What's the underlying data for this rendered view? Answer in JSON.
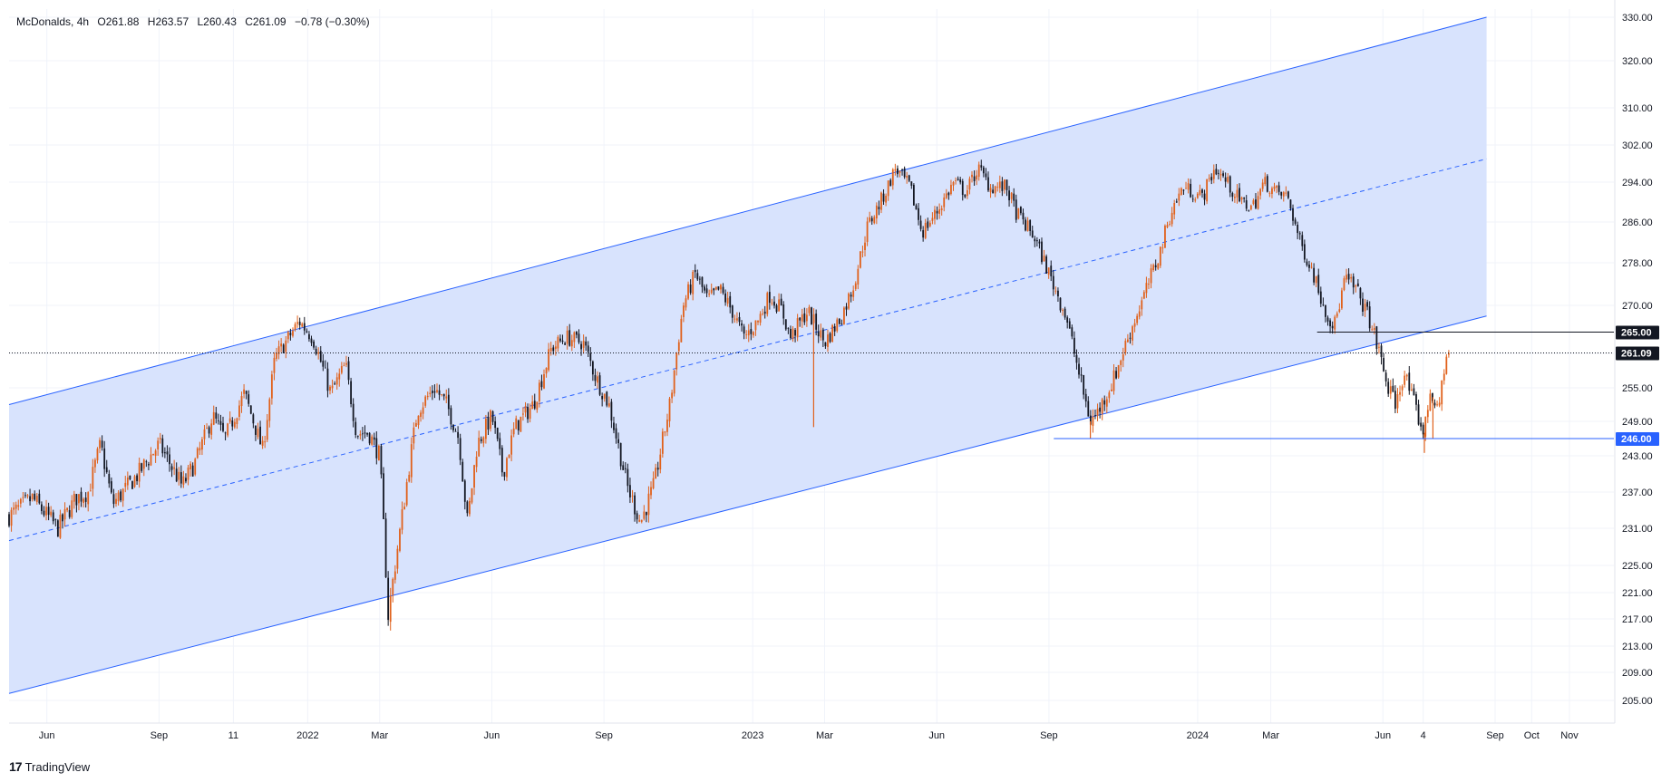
{
  "legend": {
    "symbol": "McDonalds, 4h",
    "open": "O261.88",
    "high": "H263.57",
    "low": "L260.43",
    "close": "C261.09",
    "change": "−0.78 (−0.30%)"
  },
  "brand": "TradingView",
  "colors": {
    "up": "#e0611b",
    "down": "#131722",
    "channel_line": "#2962ff",
    "channel_fill": "#d6e2fd",
    "resistance_line": "#131722",
    "support_line": "#2962ff",
    "price_badge": "#131722",
    "support_badge": "#2962ff"
  },
  "chart_data": {
    "type": "candlestick",
    "symbol": "McDonalds",
    "interval": "4h",
    "y_axis_ticks": [
      205,
      209,
      213,
      217,
      221,
      225,
      231,
      237,
      243,
      249,
      255,
      261,
      270,
      278,
      286,
      294,
      302,
      310,
      320,
      330
    ],
    "y_tick_labels": [
      "205.00",
      "209.00",
      "213.00",
      "217.00",
      "221.00",
      "225.00",
      "231.00",
      "237.00",
      "243.00",
      "249.00",
      "255.00",
      "261.09",
      "270.00",
      "278.00",
      "286.00",
      "294.00",
      "302.00",
      "310.00",
      "320.00",
      "330.00"
    ],
    "x_tick_labels": [
      "Jun",
      "Sep",
      "11",
      "2022",
      "Mar",
      "Jun",
      "Sep",
      "2023",
      "Mar",
      "Jun",
      "Sep",
      "2024",
      "Mar",
      "Jun",
      "4",
      "Sep",
      "Oct",
      "Nov"
    ],
    "x_tick_dates": [
      "2021-06-01",
      "2021-09-01",
      "2021-11-01",
      "2022-01-01",
      "2022-03-01",
      "2022-06-01",
      "2022-09-01",
      "2023-01-01",
      "2023-03-01",
      "2023-06-01",
      "2023-09-01",
      "2024-01-01",
      "2024-03-01",
      "2024-06-01",
      "2024-07-04",
      "2024-09-01",
      "2024-10-01",
      "2024-11-01"
    ],
    "price_path": [
      [
        "2021-05-01",
        233
      ],
      [
        "2021-05-20",
        236
      ],
      [
        "2021-06-10",
        231
      ],
      [
        "2021-06-25",
        236
      ],
      [
        "2021-07-05",
        237
      ],
      [
        "2021-07-15",
        245
      ],
      [
        "2021-07-25",
        235
      ],
      [
        "2021-08-15",
        240
      ],
      [
        "2021-09-01",
        245
      ],
      [
        "2021-09-20",
        238
      ],
      [
        "2021-10-01",
        242
      ],
      [
        "2021-10-15",
        250
      ],
      [
        "2021-10-25",
        246
      ],
      [
        "2021-11-10",
        254
      ],
      [
        "2021-11-25",
        244
      ],
      [
        "2021-12-05",
        260
      ],
      [
        "2021-12-25",
        267
      ],
      [
        "2022-01-05",
        264
      ],
      [
        "2022-01-20",
        254
      ],
      [
        "2022-02-01",
        259
      ],
      [
        "2022-02-10",
        247
      ],
      [
        "2022-02-20",
        247
      ],
      [
        "2022-03-01",
        243
      ],
      [
        "2022-03-08",
        217.5
      ],
      [
        "2022-03-18",
        231
      ],
      [
        "2022-04-01",
        251
      ],
      [
        "2022-04-15",
        255
      ],
      [
        "2022-04-25",
        252
      ],
      [
        "2022-05-05",
        246
      ],
      [
        "2022-05-12",
        232
      ],
      [
        "2022-05-20",
        245
      ],
      [
        "2022-06-01",
        250
      ],
      [
        "2022-06-10",
        240
      ],
      [
        "2022-06-20",
        248
      ],
      [
        "2022-07-05",
        252
      ],
      [
        "2022-07-20",
        262
      ],
      [
        "2022-08-01",
        264
      ],
      [
        "2022-08-15",
        263
      ],
      [
        "2022-08-25",
        257
      ],
      [
        "2022-09-05",
        252
      ],
      [
        "2022-09-20",
        238
      ],
      [
        "2022-10-01",
        232
      ],
      [
        "2022-10-12",
        238
      ],
      [
        "2022-10-25",
        252
      ],
      [
        "2022-11-05",
        270
      ],
      [
        "2022-11-15",
        276
      ],
      [
        "2022-11-25",
        271
      ],
      [
        "2022-12-05",
        273
      ],
      [
        "2022-12-15",
        269
      ],
      [
        "2022-12-25",
        264
      ],
      [
        "2023-01-05",
        267
      ],
      [
        "2023-01-15",
        272
      ],
      [
        "2023-01-25",
        269
      ],
      [
        "2023-02-01",
        264
      ],
      [
        "2023-02-15",
        269
      ],
      [
        "2023-03-01",
        263
      ],
      [
        "2023-03-15",
        268
      ],
      [
        "2023-03-25",
        274
      ],
      [
        "2023-04-05",
        285
      ],
      [
        "2023-04-20",
        292
      ],
      [
        "2023-04-28",
        297
      ],
      [
        "2023-05-10",
        293
      ],
      [
        "2023-05-20",
        284
      ],
      [
        "2023-06-01",
        288
      ],
      [
        "2023-06-15",
        294
      ],
      [
        "2023-06-25",
        292
      ],
      [
        "2023-07-05",
        297
      ],
      [
        "2023-07-15",
        293
      ],
      [
        "2023-07-28",
        293
      ],
      [
        "2023-08-05",
        288
      ],
      [
        "2023-08-20",
        283
      ],
      [
        "2023-09-01",
        276
      ],
      [
        "2023-09-15",
        268
      ],
      [
        "2023-09-25",
        258
      ],
      [
        "2023-10-05",
        249
      ],
      [
        "2023-10-12",
        251
      ],
      [
        "2023-10-25",
        257
      ],
      [
        "2023-11-05",
        264
      ],
      [
        "2023-11-20",
        273
      ],
      [
        "2023-12-01",
        280
      ],
      [
        "2023-12-10",
        288
      ],
      [
        "2023-12-20",
        293
      ],
      [
        "2024-01-05",
        291
      ],
      [
        "2024-01-15",
        297
      ],
      [
        "2024-01-25",
        294
      ],
      [
        "2024-02-05",
        290
      ],
      [
        "2024-02-15",
        289
      ],
      [
        "2024-02-25",
        294
      ],
      [
        "2024-03-05",
        292
      ],
      [
        "2024-03-15",
        291
      ],
      [
        "2024-03-25",
        282
      ],
      [
        "2024-04-05",
        276
      ],
      [
        "2024-04-15",
        269
      ],
      [
        "2024-04-22",
        266
      ],
      [
        "2024-05-01",
        275
      ],
      [
        "2024-05-10",
        273
      ],
      [
        "2024-05-20",
        268
      ],
      [
        "2024-05-28",
        262
      ],
      [
        "2024-06-05",
        255
      ],
      [
        "2024-06-12",
        252
      ],
      [
        "2024-06-18",
        258
      ],
      [
        "2024-06-25",
        253
      ],
      [
        "2024-07-01",
        249
      ],
      [
        "2024-07-05",
        247
      ],
      [
        "2024-07-10",
        255
      ],
      [
        "2024-07-16",
        250
      ],
      [
        "2024-07-22",
        260
      ],
      [
        "2024-07-25",
        261.09
      ]
    ],
    "ohlc_last": {
      "open": 261.88,
      "high": 263.57,
      "low": 260.43,
      "close": 261.09,
      "change": -0.78,
      "change_pct": -0.3
    },
    "spikes": [
      [
        "2023-02-20",
        248
      ],
      [
        "2023-10-05",
        246
      ],
      [
        "2024-07-05",
        243.5
      ],
      [
        "2024-07-12",
        246
      ],
      [
        "2022-03-08",
        217.5
      ]
    ],
    "regression_channel": {
      "start_date": "2021-05-01",
      "end_date": "2024-08-25",
      "upper_start": 252,
      "upper_end": 330,
      "middle_start": 229,
      "middle_end": 299,
      "lower_start": 206,
      "lower_end": 268,
      "middle_style": "dashed"
    },
    "horizontal_lines": [
      {
        "label": "265.00",
        "value": 265,
        "start_date": "2024-04-08",
        "color": "#131722",
        "style": "solid"
      },
      {
        "label": "261.09",
        "value": 261.09,
        "start_date": "2021-05-01",
        "color": "#131722",
        "style": "dotted"
      },
      {
        "label": "246.00",
        "value": 246,
        "start_date": "2023-09-05",
        "color": "#2962ff",
        "style": "solid"
      }
    ]
  }
}
